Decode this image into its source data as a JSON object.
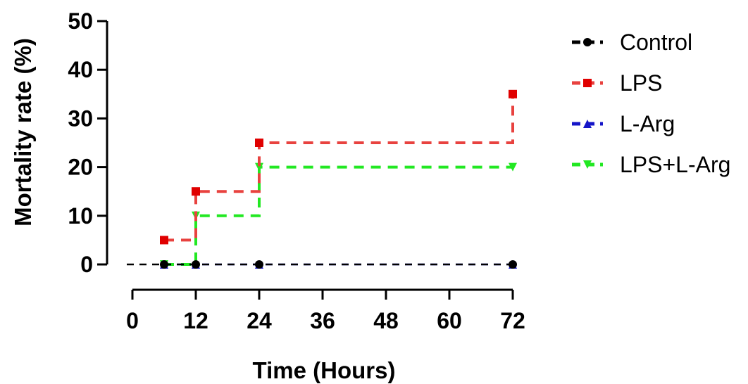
{
  "chart_data": {
    "type": "line",
    "step": true,
    "xlabel": "Time (Hours)",
    "ylabel": "Mortality rate (%)",
    "xlim": [
      0,
      72
    ],
    "ylim": [
      0,
      50
    ],
    "xticks": [
      0,
      12,
      24,
      36,
      48,
      60,
      72
    ],
    "yticks": [
      0,
      10,
      20,
      30,
      40,
      50
    ],
    "grid": false,
    "legend_position": "right",
    "series": [
      {
        "name": "Control",
        "color": "#000000",
        "marker": "circle",
        "x": [
          6,
          12,
          24,
          72
        ],
        "y": [
          0,
          0,
          0,
          0
        ]
      },
      {
        "name": "LPS",
        "color": "#e8423f",
        "marker_color": "#e00000",
        "marker": "square",
        "x": [
          6,
          12,
          24,
          72
        ],
        "y": [
          5,
          15,
          25,
          35
        ]
      },
      {
        "name": "L-Arg",
        "color": "#1515c8",
        "marker": "triangle-up",
        "x": [
          6,
          12,
          24,
          72
        ],
        "y": [
          0,
          0,
          0,
          0
        ]
      },
      {
        "name": "LPS+L-Arg",
        "color": "#22e822",
        "marker": "triangle-down",
        "x": [
          6,
          12,
          24,
          72
        ],
        "y": [
          0,
          10,
          20,
          20
        ]
      }
    ]
  }
}
